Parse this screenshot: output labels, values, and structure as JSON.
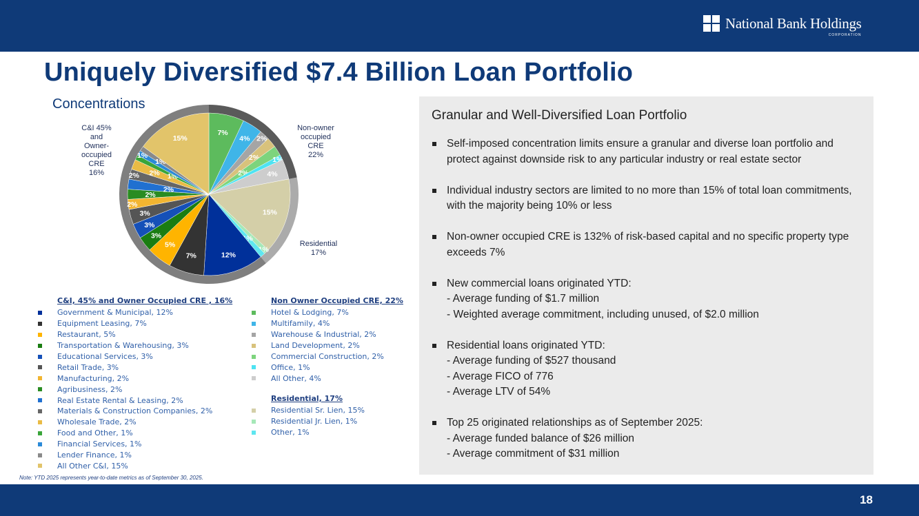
{
  "header": {
    "logo_name": "National Bank Holdings",
    "logo_sub": "CORPORATION"
  },
  "title": "Uniquely Diversified $7.4 Billion Loan Portfolio",
  "subtitle": "Concentrations",
  "group_labels": {
    "ci": [
      "C&I 45%",
      "and",
      "Owner-",
      "occupied",
      "CRE",
      "16%"
    ],
    "cre": [
      "Non-owner",
      "occupied",
      "CRE",
      "22%"
    ],
    "res": [
      "Residential",
      "17%"
    ]
  },
  "chart_data": {
    "type": "pie",
    "title": "",
    "start": "top, clockwise",
    "groups": [
      {
        "name": "Non Owner Occupied CRE, 22%",
        "ring_color": "#5a5a5a"
      },
      {
        "name": "Residential, 17%",
        "ring_color": "#ababab"
      },
      {
        "name": "C&I, 45% and Owner Occupied CRE , 16%",
        "ring_color": "#7f7f7f"
      }
    ],
    "slices": [
      {
        "name": "Hotel & Lodging",
        "value": 7,
        "group": 0,
        "color": "#5dbb5d"
      },
      {
        "name": "Multifamily",
        "value": 4,
        "group": 0,
        "color": "#3fb5e8"
      },
      {
        "name": "Warehouse & Industrial",
        "value": 2,
        "group": 0,
        "color": "#a5a5a5"
      },
      {
        "name": "Land Development",
        "value": 2,
        "group": 0,
        "color": "#d8c27c"
      },
      {
        "name": "Commercial Construction",
        "value": 2,
        "group": 0,
        "color": "#7dd47d"
      },
      {
        "name": "Office",
        "value": 1,
        "group": 0,
        "color": "#4ee3f2"
      },
      {
        "name": "All Other",
        "value": 4,
        "group": 0,
        "color": "#cdcdcd"
      },
      {
        "name": "Residential Sr. Lien",
        "value": 15,
        "group": 1,
        "color": "#d4cfa8"
      },
      {
        "name": "Residential Jr. Lien",
        "value": 1,
        "group": 1,
        "color": "#a6e8b8"
      },
      {
        "name": "Other",
        "value": 1,
        "group": 1,
        "color": "#5ee6f0"
      },
      {
        "name": "Government & Municipal",
        "value": 12,
        "group": 2,
        "color": "#00309a"
      },
      {
        "name": "Equipment Leasing",
        "value": 7,
        "group": 2,
        "color": "#333333"
      },
      {
        "name": "Restaurant",
        "value": 5,
        "group": 2,
        "color": "#ffb400"
      },
      {
        "name": "Transportation & Warehousing",
        "value": 3,
        "group": 2,
        "color": "#1a7d12"
      },
      {
        "name": "Educational Services",
        "value": 3,
        "group": 2,
        "color": "#1550b8"
      },
      {
        "name": "Retail Trade",
        "value": 3,
        "group": 2,
        "color": "#555555"
      },
      {
        "name": "Manufacturing",
        "value": 2,
        "group": 2,
        "color": "#f2b531"
      },
      {
        "name": "Agribusiness",
        "value": 2,
        "group": 2,
        "color": "#2a8c22"
      },
      {
        "name": "Real Estate Rental & Leasing",
        "value": 2,
        "group": 2,
        "color": "#2070d0"
      },
      {
        "name": "Materials & Construction Companies",
        "value": 2,
        "group": 2,
        "color": "#666666"
      },
      {
        "name": "Wholesale Trade",
        "value": 2,
        "group": 2,
        "color": "#eabb45"
      },
      {
        "name": "Food and Other",
        "value": 1,
        "group": 2,
        "color": "#3aa53a"
      },
      {
        "name": "Financial Services",
        "value": 1,
        "group": 2,
        "color": "#2b8ad8"
      },
      {
        "name": "Lender Finance",
        "value": 1,
        "group": 2,
        "color": "#8a8a8a"
      },
      {
        "name": "All Other C&I",
        "value": 15,
        "group": 2,
        "color": "#e2c46a"
      }
    ],
    "data_labels": [
      "7%",
      "4%",
      "2%",
      "2%",
      "2%",
      "1%",
      "4%",
      "15%",
      "1%",
      "1%",
      "12%",
      "7%",
      "5%",
      "3%",
      "3%",
      "3%",
      "2%",
      "2%",
      "2%",
      "2%",
      "2%",
      "1%",
      "1%",
      "1%",
      "15%"
    ]
  },
  "legend": {
    "ci": {
      "header": "C&I, 45% and Owner Occupied CRE , 16%",
      "items": [
        {
          "label": "Government & Municipal, 12%",
          "color": "#00309a"
        },
        {
          "label": "Equipment Leasing, 7%",
          "color": "#333333"
        },
        {
          "label": "Restaurant, 5%",
          "color": "#ffb400"
        },
        {
          "label": "Transportation & Warehousing, 3%",
          "color": "#1a7d12"
        },
        {
          "label": "Educational Services, 3%",
          "color": "#1550b8"
        },
        {
          "label": "Retail Trade, 3%",
          "color": "#555555"
        },
        {
          "label": "Manufacturing, 2%",
          "color": "#f2b531"
        },
        {
          "label": "Agribusiness, 2%",
          "color": "#2a8c22"
        },
        {
          "label": "Real Estate Rental & Leasing, 2%",
          "color": "#2070d0"
        },
        {
          "label": "Materials & Construction Companies, 2%",
          "color": "#666666"
        },
        {
          "label": "Wholesale Trade, 2%",
          "color": "#eabb45"
        },
        {
          "label": "Food and Other, 1%",
          "color": "#3aa53a"
        },
        {
          "label": "Financial Services, 1%",
          "color": "#2b8ad8"
        },
        {
          "label": "Lender Finance, 1%",
          "color": "#8a8a8a"
        },
        {
          "label": "All Other C&I, 15%",
          "color": "#e2c46a"
        }
      ]
    },
    "cre": {
      "header": "Non Owner Occupied CRE, 22%",
      "items": [
        {
          "label": "Hotel & Lodging, 7%",
          "color": "#5dbb5d"
        },
        {
          "label": "Multifamily, 4%",
          "color": "#3fb5e8"
        },
        {
          "label": "Warehouse & Industrial, 2%",
          "color": "#a5a5a5"
        },
        {
          "label": "Land Development, 2%",
          "color": "#d8c27c"
        },
        {
          "label": "Commercial Construction, 2%",
          "color": "#7dd47d"
        },
        {
          "label": "Office, 1%",
          "color": "#4ee3f2"
        },
        {
          "label": "All Other, 4%",
          "color": "#cdcdcd"
        }
      ]
    },
    "res": {
      "header": "Residential, 17%",
      "items": [
        {
          "label": "Residential Sr. Lien, 15%",
          "color": "#d4cfa8"
        },
        {
          "label": "Residential Jr. Lien, 1%",
          "color": "#a6e8b8"
        },
        {
          "label": "Other, 1%",
          "color": "#5ee6f0"
        }
      ]
    }
  },
  "note": "Note: YTD 2025 represents year-to-date metrics as of September 30, 2025.",
  "panel": {
    "title": "Granular and Well-Diversified Loan Portfolio",
    "bullets": [
      {
        "text": "Self-imposed concentration limits ensure a granular and diverse loan portfolio and protect against downside risk to any particular industry or real estate sector",
        "subs": []
      },
      {
        "text": "Individual industry sectors are limited to no more than 15% of total loan commitments, with the majority being 10% or less",
        "subs": []
      },
      {
        "text": "Non-owner occupied CRE is 132% of risk-based capital and no specific property type exceeds 7%",
        "subs": []
      },
      {
        "text": "New commercial loans originated YTD:",
        "subs": [
          "- Average funding of $1.7 million",
          "-  Weighted average commitment, including unused, of $2.0 million"
        ]
      },
      {
        "text": "Residential loans originated YTD:",
        "subs": [
          "- Average funding of $527 thousand",
          "- Average FICO of 776",
          "- Average LTV of 54%"
        ]
      },
      {
        "text": "Top 25 originated relationships as of September 2025:",
        "subs": [
          "- Average funded balance of $26 million",
          "- Average commitment of $31 million"
        ]
      }
    ]
  },
  "page_number": "18"
}
